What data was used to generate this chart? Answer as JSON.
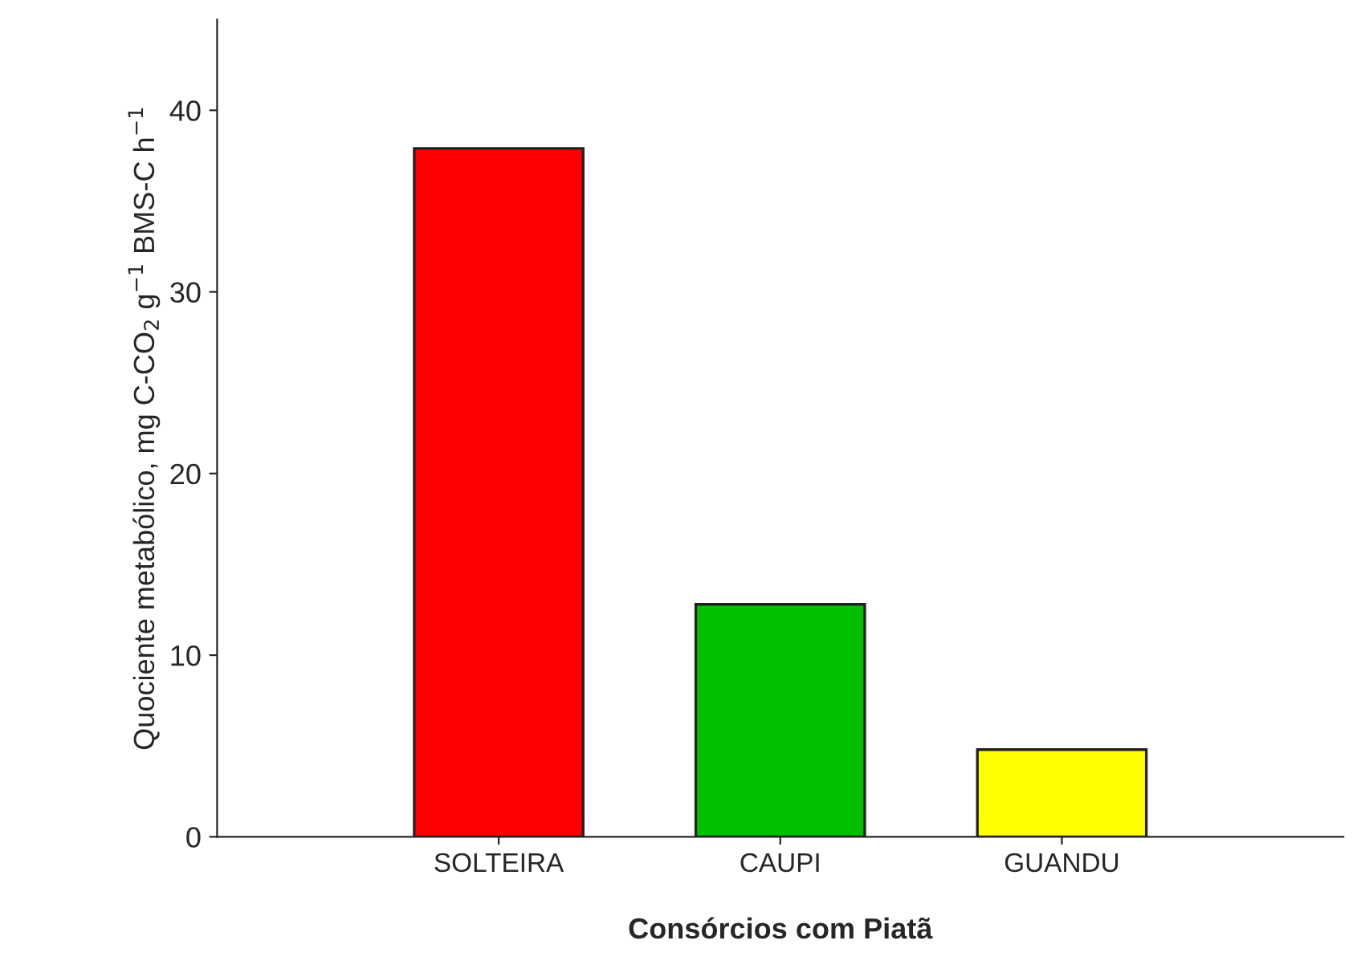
{
  "chart_data": {
    "type": "bar",
    "xlabel": "Consórcios com Piatã",
    "ylabel": "Quociente metabólico, mg C-CO$_{2}$ g$^{−1}$ BMS-C h$^{−1}$",
    "categories": [
      "SOLTEIRA",
      "CAUPI",
      "GUANDU"
    ],
    "values": [
      37.9,
      12.8,
      4.8
    ],
    "colors": [
      "#ff0000",
      "#00c000",
      "#ffff00"
    ],
    "ylim": [
      0,
      45
    ],
    "yticks": [
      0,
      10,
      20,
      30,
      40
    ],
    "grid": false
  }
}
